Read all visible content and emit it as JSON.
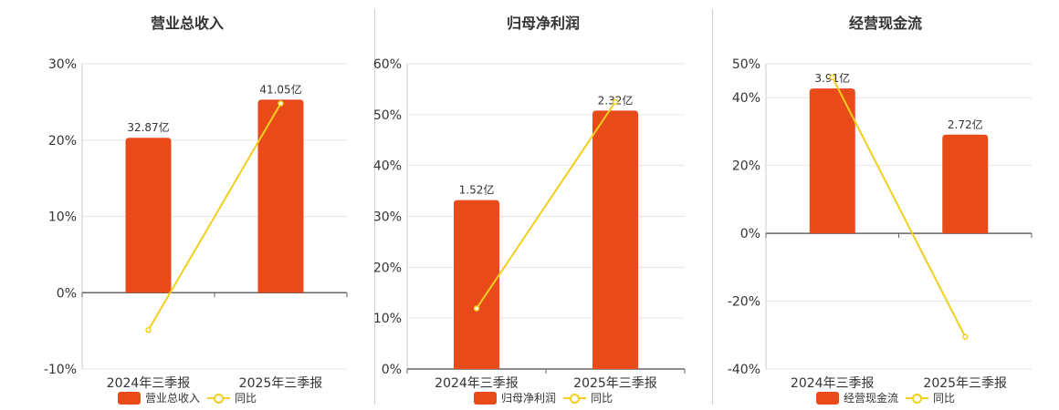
{
  "colors": {
    "bar": "#e84a1a",
    "line": "#f2cf1c",
    "axis": "#333333",
    "grid": "#e6e6e6"
  },
  "chart_data": [
    {
      "type": "bar",
      "title": "营业总收入",
      "categories": [
        "2024年三季报",
        "2025年三季报"
      ],
      "bar_series": {
        "name": "营业总收入",
        "values": [
          20.3,
          25.3
        ],
        "labels": [
          "32.87亿",
          "41.05亿"
        ]
      },
      "line_series": {
        "name": "同比",
        "values": [
          -4.9,
          24.8
        ]
      },
      "ylim": [
        -10,
        30
      ],
      "yticks": [
        -10,
        0,
        10,
        20,
        30
      ],
      "ytick_labels": [
        "-10%",
        "0%",
        "10%",
        "20%",
        "30%"
      ],
      "grid": true,
      "legend": "bottom"
    },
    {
      "type": "bar",
      "title": "归母净利润",
      "categories": [
        "2024年三季报",
        "2025年三季报"
      ],
      "bar_series": {
        "name": "归母净利润",
        "values": [
          33.2,
          50.8
        ],
        "labels": [
          "1.52亿",
          "2.32亿"
        ]
      },
      "line_series": {
        "name": "同比",
        "values": [
          11.9,
          52.5
        ]
      },
      "ylim": [
        0,
        60
      ],
      "yticks": [
        0,
        10,
        20,
        30,
        40,
        50,
        60
      ],
      "ytick_labels": [
        "0%",
        "10%",
        "20%",
        "30%",
        "40%",
        "50%",
        "60%"
      ],
      "grid": true,
      "legend": "bottom"
    },
    {
      "type": "bar",
      "title": "经营现金流",
      "categories": [
        "2024年三季报",
        "2025年三季报"
      ],
      "bar_series": {
        "name": "经营现金流",
        "values": [
          42.7,
          29.1
        ],
        "labels": [
          "3.91亿",
          "2.72亿"
        ]
      },
      "line_series": {
        "name": "同比",
        "values": [
          46.0,
          -30.5
        ]
      },
      "ylim": [
        -40,
        50
      ],
      "yticks": [
        -40,
        -20,
        0,
        20,
        40,
        50
      ],
      "ytick_labels": [
        "-40%",
        "-20%",
        "0%",
        "20%",
        "40%",
        "50%"
      ],
      "grid": true,
      "legend": "bottom"
    }
  ]
}
